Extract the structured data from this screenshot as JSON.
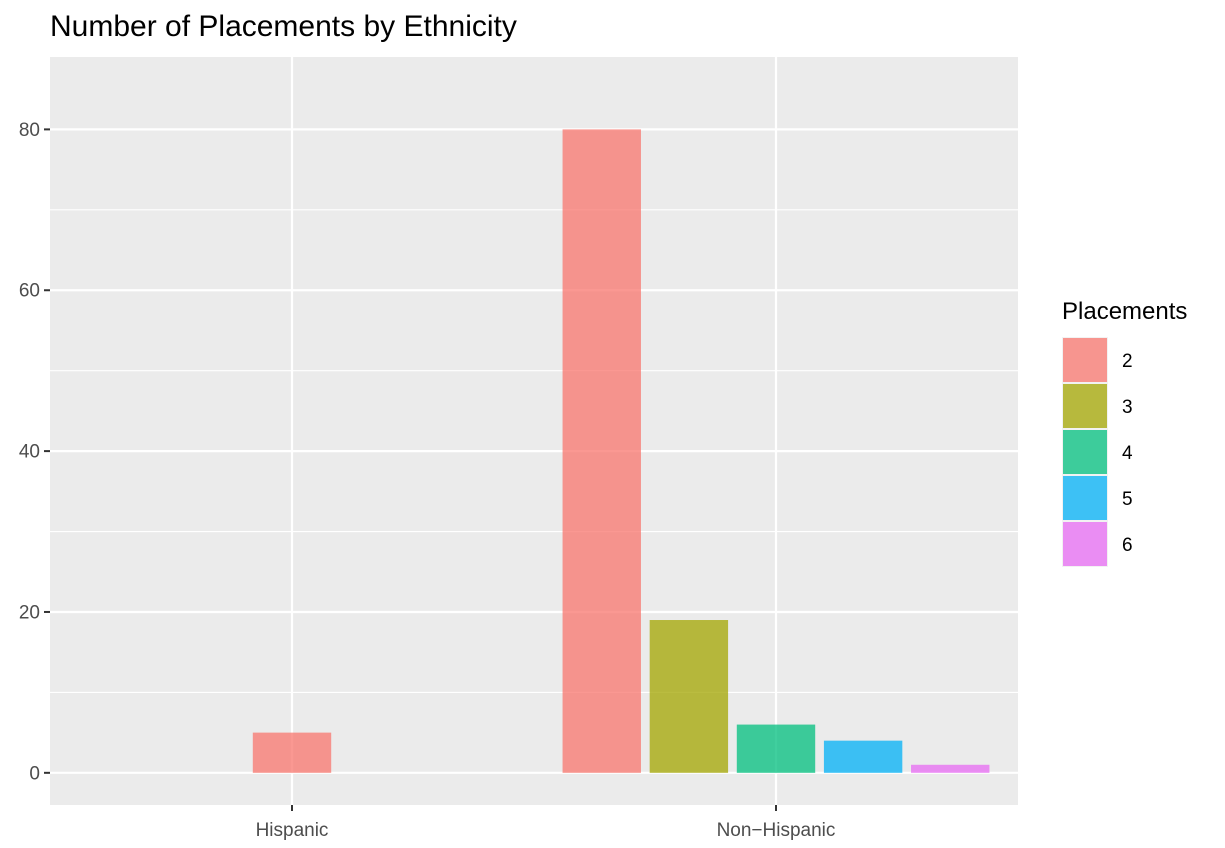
{
  "chart_data": {
    "type": "bar",
    "title": "Number of Placements by Ethnicity",
    "xlabel": "",
    "ylabel": "",
    "categories": [
      "Hispanic",
      "Non−Hispanic"
    ],
    "series": [
      {
        "name": "2",
        "color": "#F8766D",
        "values": [
          5,
          80
        ]
      },
      {
        "name": "3",
        "color": "#A3A500",
        "values": [
          0,
          19
        ]
      },
      {
        "name": "4",
        "color": "#00BF7D",
        "values": [
          0,
          6
        ]
      },
      {
        "name": "5",
        "color": "#00B0F6",
        "values": [
          0,
          4
        ]
      },
      {
        "name": "6",
        "color": "#E76BF3",
        "values": [
          0,
          1
        ]
      }
    ],
    "ylim": [
      -4,
      89
    ],
    "yticks": [
      0,
      20,
      40,
      60,
      80
    ],
    "ytick_labels": [
      "0",
      "20",
      "40",
      "60",
      "80"
    ],
    "grid": true,
    "bar_opacity": 0.75,
    "panel_background": "#EBEBEB",
    "legend": {
      "title": "Placements",
      "position": "right",
      "labels": [
        "2",
        "3",
        "4",
        "5",
        "6"
      ]
    }
  }
}
